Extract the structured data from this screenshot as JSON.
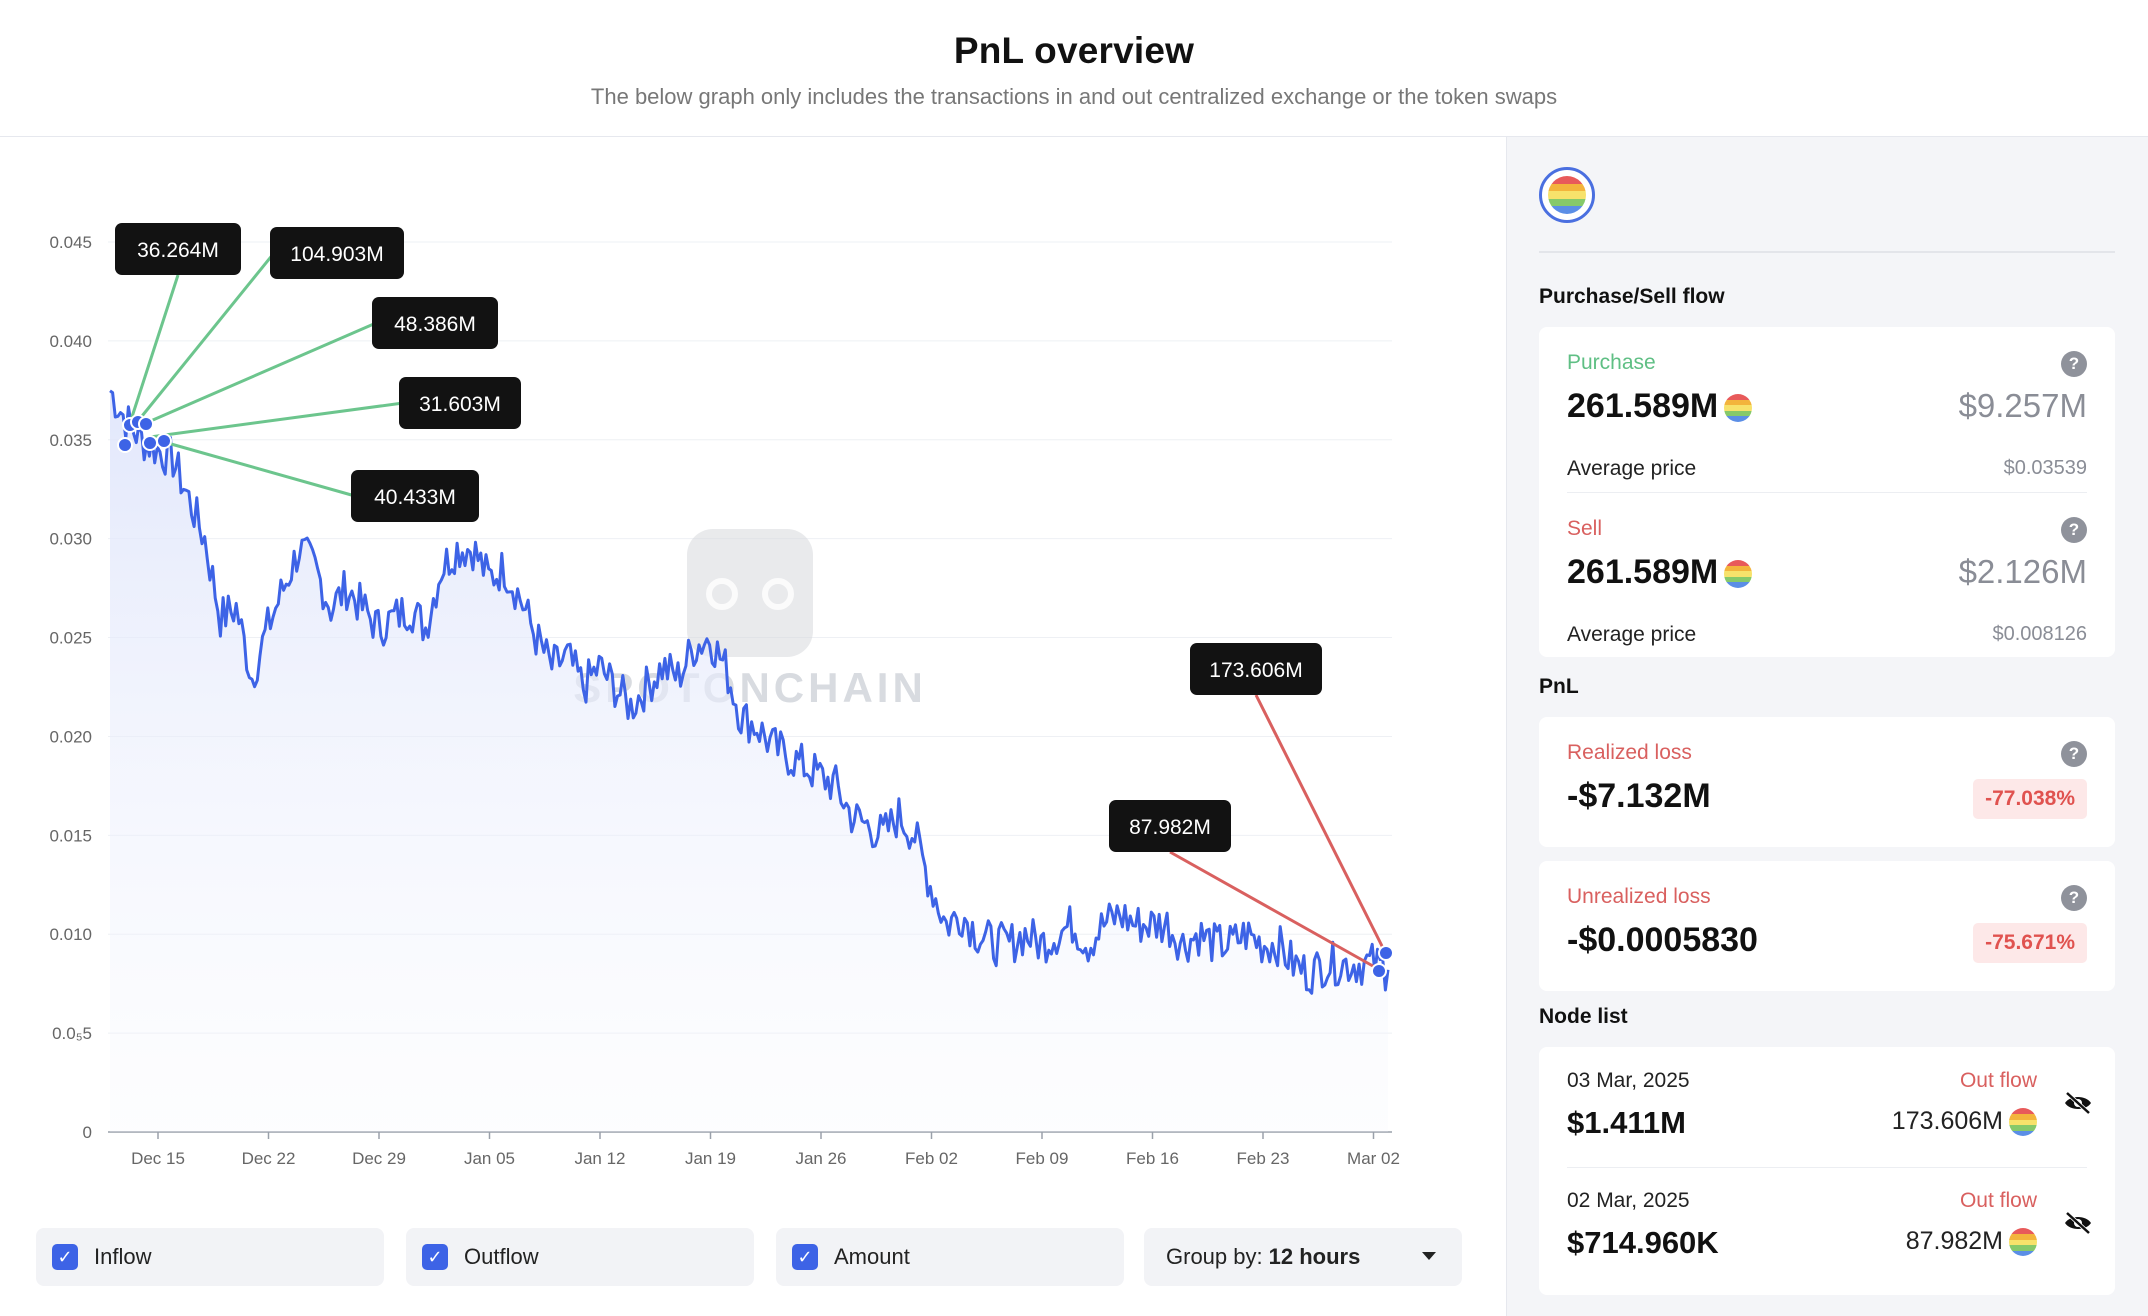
{
  "header": {
    "title": "PnL overview",
    "subtitle": "The below graph only includes the transactions in and out centralized exchange or the token swaps"
  },
  "chart_data": {
    "type": "line",
    "y_ticks": [
      "0.045",
      "0.040",
      "0.035",
      "0.030",
      "0.025",
      "0.020",
      "0.015",
      "0.010",
      "0.0₅5",
      "0"
    ],
    "x_ticks": [
      "Dec 15",
      "Dec 22",
      "Dec 29",
      "Jan 05",
      "Jan 12",
      "Jan 19",
      "Jan 26",
      "Feb 02",
      "Feb 09",
      "Feb 16",
      "Feb 23",
      "Mar 02"
    ],
    "ylim": [
      0,
      0.045
    ],
    "grid": true,
    "series": [
      {
        "x": [
          "Dec 12",
          "Dec 13",
          "Dec 14",
          "Dec 15",
          "Dec 16",
          "Dec 17",
          "Dec 18",
          "Dec 19",
          "Dec 20",
          "Dec 21",
          "Dec 22",
          "Dec 23",
          "Dec 24",
          "Dec 25",
          "Dec 26",
          "Dec 27",
          "Dec 28",
          "Dec 29",
          "Dec 30",
          "Dec 31",
          "Jan 01",
          "Jan 02",
          "Jan 03",
          "Jan 04",
          "Jan 05",
          "Jan 06",
          "Jan 07",
          "Jan 08",
          "Jan 09",
          "Jan 10",
          "Jan 11",
          "Jan 12",
          "Jan 13",
          "Jan 14",
          "Jan 15",
          "Jan 16",
          "Jan 17",
          "Jan 18",
          "Jan 19",
          "Jan 20",
          "Jan 21",
          "Jan 22",
          "Jan 23",
          "Jan 24",
          "Jan 25",
          "Jan 26",
          "Jan 27",
          "Jan 28",
          "Jan 29",
          "Jan 30",
          "Jan 31",
          "Feb 01",
          "Feb 02",
          "Feb 03",
          "Feb 04",
          "Feb 05",
          "Feb 06",
          "Feb 07",
          "Feb 08",
          "Feb 09",
          "Feb 10",
          "Feb 11",
          "Feb 12",
          "Feb 13",
          "Feb 14",
          "Feb 15",
          "Feb 16",
          "Feb 17",
          "Feb 18",
          "Feb 19",
          "Feb 20",
          "Feb 21",
          "Feb 22",
          "Feb 23",
          "Feb 24",
          "Feb 25",
          "Feb 26",
          "Feb 27",
          "Feb 28",
          "Mar 01",
          "Mar 02",
          "Mar 03"
        ],
        "values": [
          0.0375,
          0.036,
          0.035,
          0.0345,
          0.034,
          0.032,
          0.03,
          0.026,
          0.0265,
          0.023,
          0.0255,
          0.0275,
          0.0295,
          0.0285,
          0.0265,
          0.0275,
          0.0265,
          0.0255,
          0.026,
          0.0265,
          0.0255,
          0.0285,
          0.0295,
          0.0295,
          0.028,
          0.0285,
          0.027,
          0.025,
          0.0235,
          0.024,
          0.0225,
          0.0235,
          0.0225,
          0.0215,
          0.0225,
          0.0235,
          0.023,
          0.0245,
          0.025,
          0.0235,
          0.021,
          0.0205,
          0.0195,
          0.019,
          0.0185,
          0.018,
          0.0175,
          0.016,
          0.0155,
          0.015,
          0.016,
          0.015,
          0.0125,
          0.0105,
          0.011,
          0.01,
          0.0095,
          0.0095,
          0.01,
          0.0095,
          0.01,
          0.0105,
          0.0095,
          0.0105,
          0.011,
          0.0105,
          0.0105,
          0.0105,
          0.0095,
          0.01,
          0.0095,
          0.0095,
          0.01,
          0.0095,
          0.0095,
          0.0085,
          0.008,
          0.0085,
          0.0085,
          0.0085,
          0.0085,
          0.0082
        ]
      }
    ],
    "tooltips": [
      {
        "label": "36.264M",
        "type": "Inflow"
      },
      {
        "label": "104.903M",
        "type": "Inflow"
      },
      {
        "label": "48.386M",
        "type": "Inflow"
      },
      {
        "label": "31.603M",
        "type": "Inflow"
      },
      {
        "label": "40.433M",
        "type": "Inflow"
      },
      {
        "label": "173.606M",
        "type": "Outflow"
      },
      {
        "label": "87.982M",
        "type": "Outflow"
      }
    ],
    "watermark": "SPOTONCHAIN"
  },
  "controls": {
    "inflow_label": "Inflow",
    "outflow_label": "Outflow",
    "amount_label": "Amount",
    "group_by_label": "Group by:",
    "group_by_value": "12 hours",
    "check_mark": "✓"
  },
  "colors": {
    "line": "#3d63e6",
    "inflow": "#6cc58d",
    "outflow": "#d9605f",
    "accent": "#3d63e6"
  },
  "sidebar": {
    "flow_title": "Purchase/Sell flow",
    "purchase": {
      "label": "Purchase",
      "amount": "261.589M",
      "usd": "$9.257M",
      "avg_label": "Average price",
      "avg_value": "$0.03539"
    },
    "sell": {
      "label": "Sell",
      "amount": "261.589M",
      "usd": "$2.126M",
      "avg_label": "Average price",
      "avg_value": "$0.008126"
    },
    "pnl_title": "PnL",
    "realized": {
      "label": "Realized loss",
      "value": "-$7.132M",
      "pct": "-77.038%"
    },
    "unrealized": {
      "label": "Unrealized loss",
      "value": "-$0.0005830",
      "pct": "-75.671%"
    },
    "node_title": "Node list",
    "nodes": [
      {
        "date": "03 Mar, 2025",
        "value": "$1.411M",
        "flow": "Out flow",
        "amount": "173.606M"
      },
      {
        "date": "02 Mar, 2025",
        "value": "$714.960K",
        "flow": "Out flow",
        "amount": "87.982M"
      }
    ],
    "help_glyph": "?"
  }
}
